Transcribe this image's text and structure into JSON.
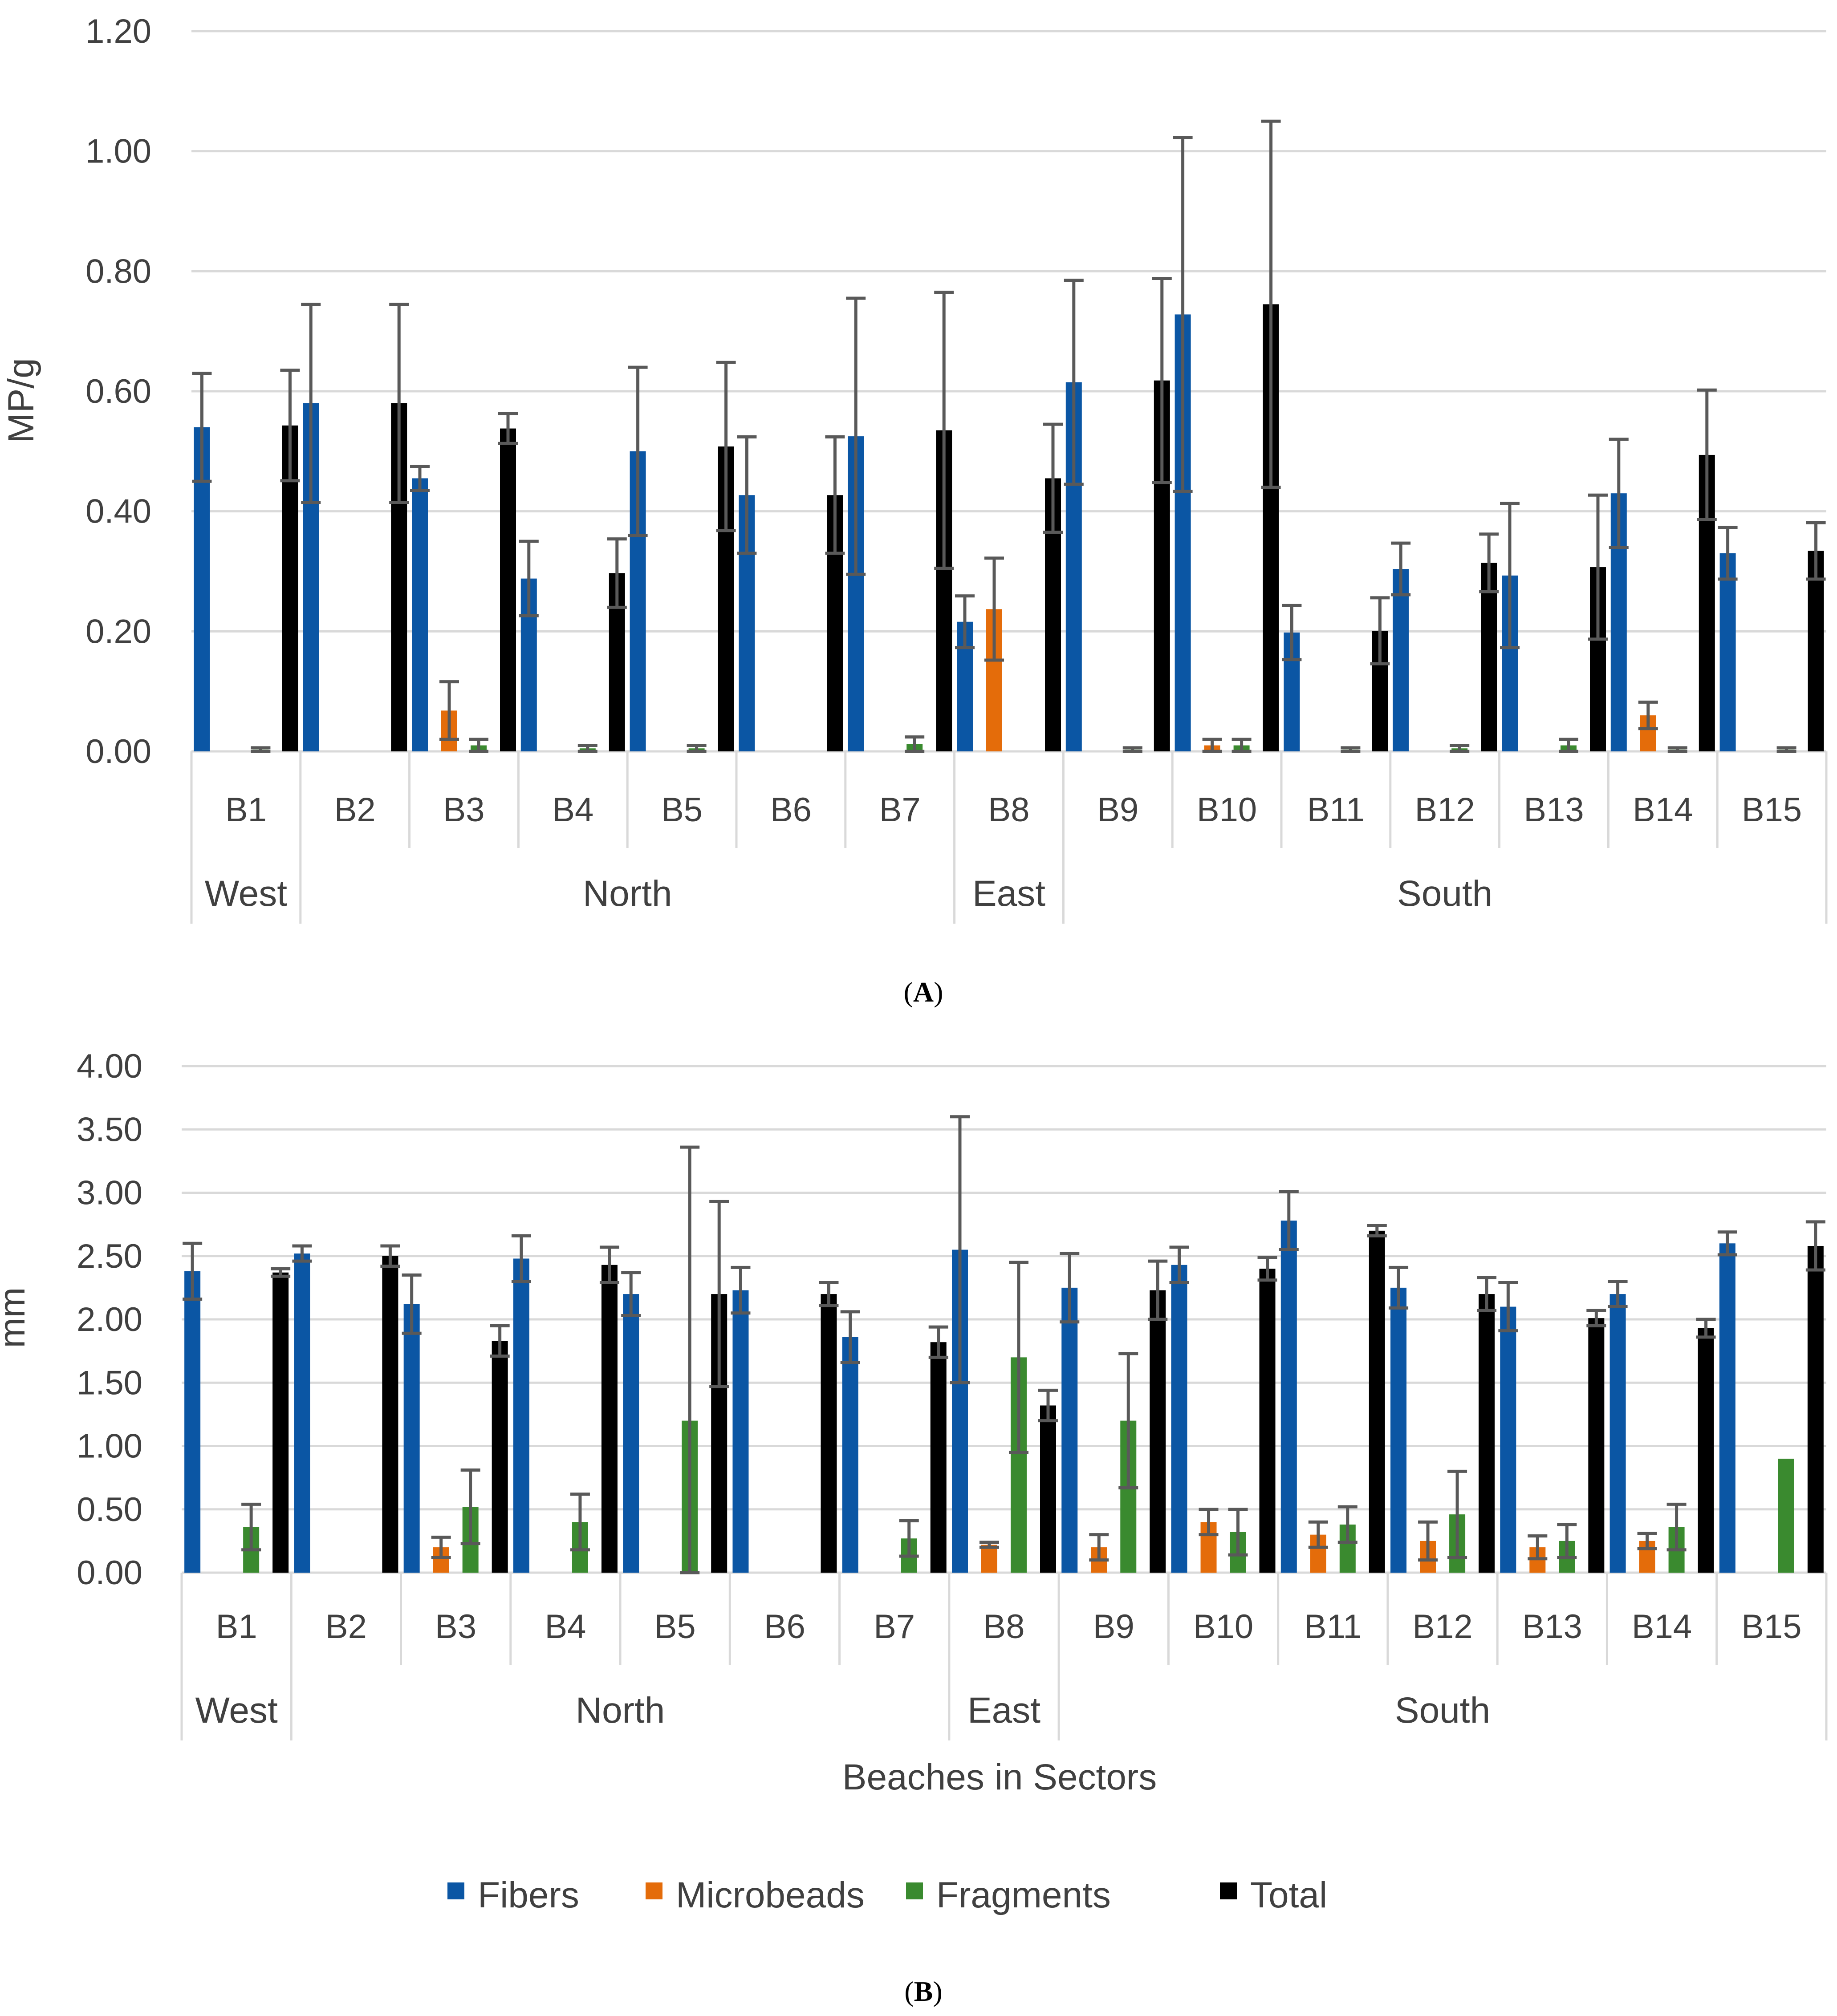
{
  "chart_data": [
    {
      "type": "bar",
      "panel": "A",
      "ylabel": "MP/g",
      "xlabel": "",
      "ylim": [
        0,
        1.2
      ],
      "yticks": [
        0,
        0.2,
        0.4,
        0.6,
        0.8,
        1.0,
        1.2
      ],
      "ytick_labels": [
        "0.00",
        "0.20",
        "0.40",
        "0.60",
        "0.80",
        "1.00",
        "1.20"
      ],
      "grid": true,
      "categories": [
        "B1",
        "B2",
        "B3",
        "B4",
        "B5",
        "B6",
        "B7",
        "B8",
        "B9",
        "B10",
        "B11",
        "B12",
        "B13",
        "B14",
        "B15"
      ],
      "sectors": [
        {
          "name": "West",
          "count": 1
        },
        {
          "name": "North",
          "count": 6
        },
        {
          "name": "East",
          "count": 1
        },
        {
          "name": "South",
          "count": 7
        }
      ],
      "series": [
        {
          "name": "Fibers",
          "color": "#0b56a4",
          "values": [
            0.54,
            0.58,
            0.455,
            0.288,
            0.5,
            0.427,
            0.525,
            0.216,
            0.615,
            0.728,
            0.198,
            0.304,
            0.293,
            0.43,
            0.33
          ],
          "errors": [
            0.09,
            0.165,
            0.02,
            0.062,
            0.14,
            0.097,
            0.23,
            0.043,
            0.17,
            0.295,
            0.045,
            0.043,
            0.12,
            0.09,
            0.043
          ]
        },
        {
          "name": "Microbeads",
          "color": "#e46c0a",
          "values": [
            0,
            0,
            0.068,
            0,
            0,
            0,
            0,
            0.237,
            0,
            0.01,
            0,
            0,
            0,
            0.06,
            0
          ],
          "errors": [
            0,
            0,
            0.048,
            0,
            0,
            0,
            0,
            0.085,
            0,
            0.01,
            0,
            0,
            0,
            0.022,
            0
          ]
        },
        {
          "name": "Fragments",
          "color": "#3a8a2f",
          "values": [
            0.003,
            0,
            0.01,
            0.005,
            0.005,
            0,
            0.012,
            0,
            0.003,
            0.01,
            0.003,
            0.005,
            0.01,
            0.003,
            0.003
          ],
          "errors": [
            0.003,
            0,
            0.01,
            0.005,
            0.005,
            0,
            0.012,
            0,
            0.003,
            0.01,
            0.003,
            0.005,
            0.01,
            0.003,
            0.003
          ]
        },
        {
          "name": "Total",
          "color": "#000000",
          "values": [
            0.543,
            0.58,
            0.538,
            0.297,
            0.508,
            0.427,
            0.535,
            0.455,
            0.618,
            0.745,
            0.201,
            0.314,
            0.307,
            0.494,
            0.334
          ],
          "errors": [
            0.092,
            0.165,
            0.025,
            0.057,
            0.14,
            0.097,
            0.23,
            0.09,
            0.17,
            0.305,
            0.055,
            0.048,
            0.12,
            0.108,
            0.047
          ]
        }
      ]
    },
    {
      "type": "bar",
      "panel": "B",
      "ylabel": "mm",
      "xlabel": "Beaches in Sectors",
      "ylim": [
        0,
        4
      ],
      "yticks": [
        0,
        0.5,
        1,
        1.5,
        2,
        2.5,
        3,
        3.5,
        4
      ],
      "ytick_labels": [
        "0.00",
        "0.50",
        "1.00",
        "1.50",
        "2.00",
        "2.50",
        "3.00",
        "3.50",
        "4.00"
      ],
      "grid": true,
      "categories": [
        "B1",
        "B2",
        "B3",
        "B4",
        "B5",
        "B6",
        "B7",
        "B8",
        "B9",
        "B10",
        "B11",
        "B12",
        "B13",
        "B14",
        "B15"
      ],
      "sectors": [
        {
          "name": "West",
          "count": 1
        },
        {
          "name": "North",
          "count": 6
        },
        {
          "name": "East",
          "count": 1
        },
        {
          "name": "South",
          "count": 7
        }
      ],
      "series": [
        {
          "name": "Fibers",
          "color": "#0b56a4",
          "values": [
            2.38,
            2.52,
            2.12,
            2.48,
            2.2,
            2.23,
            1.86,
            2.55,
            2.25,
            2.43,
            2.78,
            2.25,
            2.1,
            2.2,
            2.6
          ],
          "errors": [
            0.22,
            0.06,
            0.23,
            0.18,
            0.17,
            0.18,
            0.2,
            1.05,
            0.27,
            0.14,
            0.23,
            0.16,
            0.19,
            0.1,
            0.09
          ]
        },
        {
          "name": "Microbeads",
          "color": "#e46c0a",
          "values": [
            0,
            0,
            0.2,
            0,
            0,
            0,
            0,
            0.22,
            0.2,
            0.4,
            0.3,
            0.25,
            0.2,
            0.25,
            0
          ],
          "errors": [
            0,
            0,
            0.08,
            0,
            0,
            0,
            0,
            0.02,
            0.1,
            0.1,
            0.1,
            0.15,
            0.09,
            0.06,
            0
          ]
        },
        {
          "name": "Fragments",
          "color": "#3a8a2f",
          "values": [
            0.36,
            0,
            0.52,
            0.4,
            1.2,
            0,
            0.27,
            1.7,
            1.2,
            0.32,
            0.38,
            0.46,
            0.25,
            0.36,
            0.9
          ],
          "errors": [
            0.18,
            0,
            0.29,
            0.22,
            2.16,
            0,
            0.14,
            0.75,
            0.53,
            0.18,
            0.14,
            0.34,
            0.13,
            0.18,
            0
          ]
        },
        {
          "name": "Total",
          "color": "#000000",
          "values": [
            2.37,
            2.5,
            1.83,
            2.43,
            2.2,
            2.2,
            1.82,
            1.32,
            2.23,
            2.4,
            2.7,
            2.2,
            2.01,
            1.93,
            2.58
          ],
          "errors": [
            0.03,
            0.08,
            0.12,
            0.14,
            0.73,
            0.09,
            0.12,
            0.12,
            0.23,
            0.09,
            0.04,
            0.13,
            0.06,
            0.07,
            0.19
          ]
        }
      ]
    }
  ],
  "panel_labels": {
    "a_open": "(",
    "a_letter": "A",
    "a_close": ")",
    "b_open": "(",
    "b_letter": "B",
    "b_close": ")"
  },
  "legend": [
    "Fibers",
    "Microbeads",
    "Fragments",
    "Total"
  ]
}
